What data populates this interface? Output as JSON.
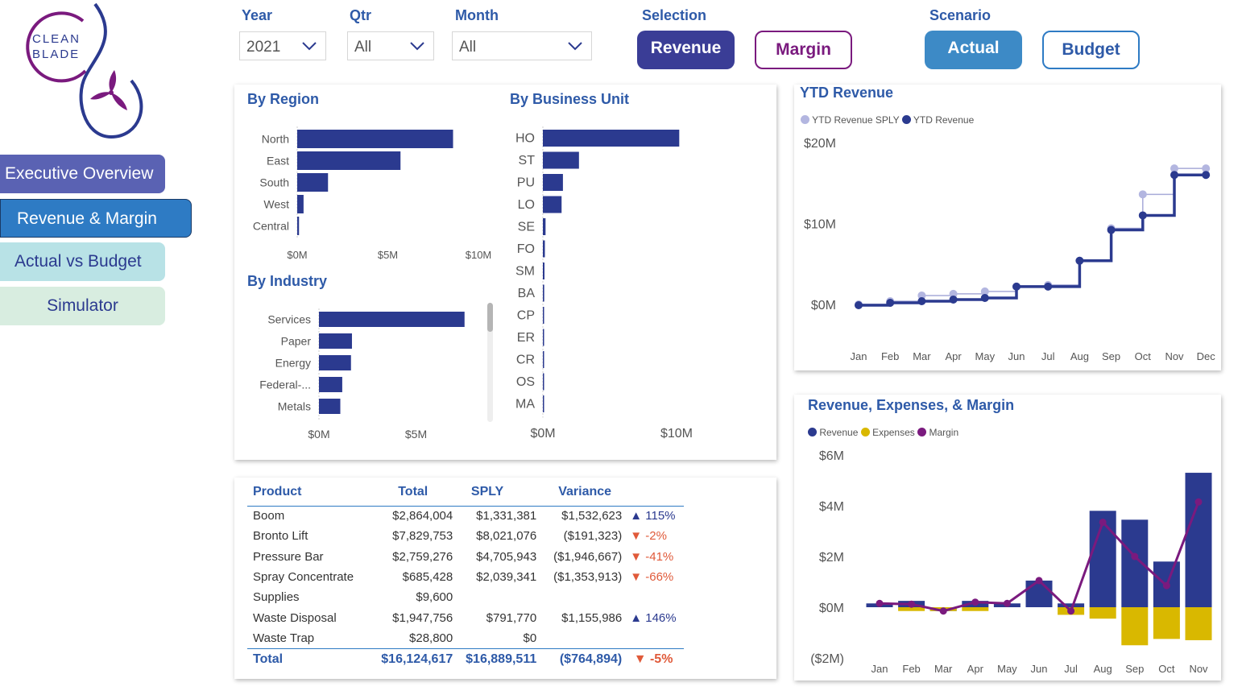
{
  "logo": {
    "line1": "CLEAN",
    "line2": "BLADE"
  },
  "nav": [
    {
      "label": "Executive Overview"
    },
    {
      "label": "Revenue & Margin"
    },
    {
      "label": "Actual vs Budget"
    },
    {
      "label": "Simulator"
    }
  ],
  "filters": {
    "year": {
      "label": "Year",
      "value": "2021"
    },
    "qtr": {
      "label": "Qtr",
      "value": "All"
    },
    "month": {
      "label": "Month",
      "value": "All"
    },
    "selection": {
      "label": "Selection",
      "options": [
        "Revenue",
        "Margin"
      ],
      "selected": "Revenue"
    },
    "scenario": {
      "label": "Scenario",
      "options": [
        "Actual",
        "Budget"
      ],
      "selected": "Actual"
    }
  },
  "colors": {
    "navy": "#2b3a8f",
    "light": "#b3b6e0",
    "gold": "#d9b800",
    "purple": "#7a1a7e",
    "accent": "#2e5aa8"
  },
  "charts": {
    "region": {
      "title": "By Region"
    },
    "business_unit": {
      "title": "By Business Unit"
    },
    "industry": {
      "title": "By Industry"
    },
    "ytd": {
      "title": "YTD Revenue",
      "legend": [
        "YTD Revenue SPLY",
        "YTD Revenue"
      ]
    },
    "rem": {
      "title": "Revenue, Expenses, & Margin",
      "legend": [
        "Revenue",
        "Expenses",
        "Margin"
      ]
    }
  },
  "chart_data": [
    {
      "id": "region",
      "type": "bar",
      "orientation": "horizontal",
      "title": "By Region",
      "categories": [
        "North",
        "East",
        "South",
        "West",
        "Central"
      ],
      "values": [
        8.6,
        5.7,
        1.7,
        0.35,
        0.1
      ],
      "xlim": [
        0,
        10
      ],
      "ticks": [
        "$0M",
        "$5M",
        "$10M"
      ]
    },
    {
      "id": "bu",
      "type": "bar",
      "orientation": "horizontal",
      "title": "By Business Unit",
      "categories": [
        "HO",
        "ST",
        "PU",
        "LO",
        "SE",
        "FO",
        "SM",
        "BA",
        "CP",
        "ER",
        "CR",
        "OS",
        "MA"
      ],
      "values": [
        10.2,
        2.7,
        1.5,
        1.4,
        0.2,
        0.15,
        0.12,
        0.1,
        0.08,
        0.06,
        0.05,
        0.04,
        0.03
      ],
      "xlim": [
        0,
        10
      ],
      "ticks": [
        "$0M",
        "$10M"
      ]
    },
    {
      "id": "industry",
      "type": "bar",
      "orientation": "horizontal",
      "title": "By Industry",
      "categories": [
        "Services",
        "Paper",
        "Energy",
        "Federal-...",
        "Metals"
      ],
      "values": [
        7.5,
        1.7,
        1.65,
        1.2,
        1.1
      ],
      "xlim": [
        0,
        10
      ],
      "ticks": [
        "$0M",
        "$5M"
      ]
    },
    {
      "id": "ytd",
      "type": "line",
      "title": "YTD Revenue",
      "x": [
        "Jan",
        "Feb",
        "Mar",
        "Apr",
        "May",
        "Jun",
        "Jul",
        "Aug",
        "Sep",
        "Oct",
        "Nov",
        "Dec"
      ],
      "series": [
        {
          "name": "YTD Revenue SPLY",
          "values": [
            0.1,
            0.5,
            1.2,
            1.4,
            1.7,
            2.3,
            2.5,
            5.5,
            9.5,
            13.7,
            16.9,
            16.9
          ]
        },
        {
          "name": "YTD Revenue",
          "values": [
            0.0,
            0.3,
            0.5,
            0.7,
            0.9,
            2.3,
            2.3,
            5.5,
            9.3,
            11.1,
            16.1,
            16.1
          ]
        }
      ],
      "ylim": [
        -1.5,
        21
      ],
      "yticks": [
        "$0M",
        "$10M",
        "$20M"
      ]
    },
    {
      "id": "rem",
      "type": "bar",
      "title": "Revenue, Expenses, & Margin",
      "x": [
        "Jan",
        "Feb",
        "Mar",
        "Apr",
        "May",
        "Jun",
        "Jul",
        "Aug",
        "Sep",
        "Oct",
        "Nov"
      ],
      "series": [
        {
          "name": "Revenue",
          "type": "bar",
          "values": [
            0.15,
            0.25,
            -0.15,
            0.25,
            0.15,
            1.05,
            0.15,
            3.8,
            3.45,
            1.8,
            5.3
          ]
        },
        {
          "name": "Expenses",
          "type": "bar",
          "values": [
            0,
            -0.15,
            -0.15,
            -0.15,
            0,
            0,
            -0.3,
            -0.45,
            -1.5,
            -1.25,
            -1.3
          ]
        },
        {
          "name": "Margin",
          "type": "line",
          "values": [
            0.15,
            0.12,
            -0.15,
            0.2,
            0.15,
            1.05,
            -0.15,
            3.35,
            2.0,
            0.85,
            4.15
          ]
        }
      ],
      "ylim": [
        -2.5,
        6.5
      ],
      "yticks": [
        "($2M)",
        "$0M",
        "$2M",
        "$4M",
        "$6M"
      ]
    }
  ],
  "product_table": {
    "headers": [
      "Product",
      "Total",
      "SPLY",
      "Variance"
    ],
    "rows": [
      {
        "product": "Boom",
        "total": "$2,864,004",
        "sply": "$1,331,381",
        "variance": "$1,532,623",
        "dir": "up",
        "pct": "115%"
      },
      {
        "product": "Bronto Lift",
        "total": "$7,829,753",
        "sply": "$8,021,076",
        "variance": "($191,323)",
        "dir": "down",
        "pct": "-2%"
      },
      {
        "product": "Pressure Bar",
        "total": "$2,759,276",
        "sply": "$4,705,943",
        "variance": "($1,946,667)",
        "dir": "down",
        "pct": "-41%"
      },
      {
        "product": "Spray Concentrate",
        "total": "$685,428",
        "sply": "$2,039,341",
        "variance": "($1,353,913)",
        "dir": "down",
        "pct": "-66%"
      },
      {
        "product": "Supplies",
        "total": "$9,600",
        "sply": "",
        "variance": "",
        "dir": "",
        "pct": ""
      },
      {
        "product": "Waste Disposal",
        "total": "$1,947,756",
        "sply": "$791,770",
        "variance": "$1,155,986",
        "dir": "up",
        "pct": "146%"
      },
      {
        "product": "Waste Trap",
        "total": "$28,800",
        "sply": "$0",
        "variance": "",
        "dir": "",
        "pct": ""
      }
    ],
    "total": {
      "label": "Total",
      "total": "$16,124,617",
      "sply": "$16,889,511",
      "variance": "($764,894)",
      "dir": "down",
      "pct": "-5%"
    }
  }
}
